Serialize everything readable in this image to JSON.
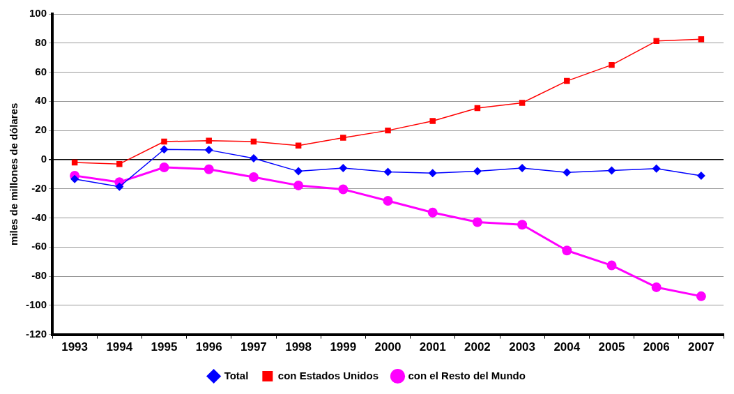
{
  "chart_data": {
    "type": "line",
    "ylabel": "miles de millones de dólares",
    "categories": [
      "1993",
      "1994",
      "1995",
      "1996",
      "1997",
      "1998",
      "1999",
      "2000",
      "2001",
      "2002",
      "2003",
      "2004",
      "2005",
      "2006",
      "2007"
    ],
    "series": [
      {
        "name": "Total",
        "color": "#0000ff",
        "marker": "diamond",
        "values": [
          -13.3,
          -18.6,
          7,
          6.6,
          0.9,
          -8,
          -5.8,
          -8.4,
          -9.3,
          -8,
          -5.8,
          -8.8,
          -7.5,
          -6.2,
          -11
        ]
      },
      {
        "name": "con Estados Unidos",
        "color": "#ff0000",
        "marker": "square",
        "values": [
          -2,
          -3,
          12.4,
          13,
          12.4,
          9.7,
          15,
          20,
          26.5,
          35.4,
          39,
          54,
          65,
          81.4,
          82.7
        ]
      },
      {
        "name": "con el Resto del Mundo",
        "color": "#ff00ff",
        "marker": "circle",
        "values": [
          -11,
          -15.5,
          -5.3,
          -6.6,
          -12,
          -17.7,
          -20.4,
          -28.3,
          -36.3,
          -42.9,
          -44.7,
          -62.4,
          -72.6,
          -87.6,
          -93.8
        ]
      }
    ],
    "ylim": [
      -120,
      100
    ],
    "yticks": [
      -120,
      -100,
      -80,
      -60,
      -40,
      -20,
      0,
      20,
      40,
      60,
      80,
      100
    ],
    "grid": "y",
    "legend": "bottom",
    "line_style": "solid"
  }
}
